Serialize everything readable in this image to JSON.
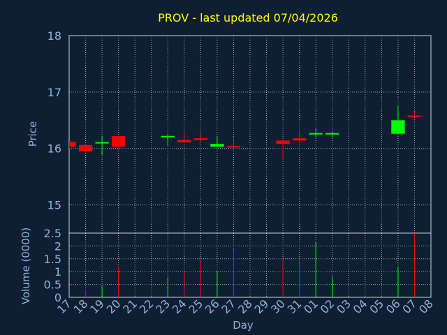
{
  "title": "PROV - last updated 07/04/2026",
  "chart_data": {
    "type": "candlestick",
    "x_label": "Day",
    "days": [
      "17",
      "18",
      "19",
      "20",
      "21",
      "22",
      "23",
      "24",
      "25",
      "26",
      "27",
      "28",
      "29",
      "30",
      "31",
      "01",
      "02",
      "03",
      "04",
      "05",
      "06",
      "07",
      "08"
    ],
    "colors": {
      "up": "#00ff00",
      "down": "#ff0000",
      "background": "#0f1f33",
      "text": "#8fb4d8",
      "title": "#ffff00"
    },
    "price": {
      "ylabel": "Price",
      "ylim": [
        14.5,
        18.0
      ],
      "ticks": [
        15,
        16,
        17,
        18
      ],
      "candles": [
        {
          "day": "17",
          "open": 16.12,
          "high": 16.12,
          "low": 16.0,
          "close": 16.03
        },
        {
          "day": "18",
          "open": 16.06,
          "high": 16.06,
          "low": 15.93,
          "close": 15.95
        },
        {
          "day": "19",
          "open": 16.09,
          "high": 16.22,
          "low": 15.89,
          "close": 16.1
        },
        {
          "day": "20",
          "open": 16.22,
          "high": 16.22,
          "low": 16.02,
          "close": 16.03
        },
        {
          "day": "23",
          "open": 16.2,
          "high": 16.25,
          "low": 16.05,
          "close": 16.21
        },
        {
          "day": "24",
          "open": 16.15,
          "high": 16.3,
          "low": 16.1,
          "close": 16.11
        },
        {
          "day": "25",
          "open": 16.18,
          "high": 16.25,
          "low": 16.15,
          "close": 16.15
        },
        {
          "day": "26",
          "open": 16.03,
          "high": 16.2,
          "low": 16.02,
          "close": 16.08
        },
        {
          "day": "27",
          "open": 16.03,
          "high": 16.2,
          "low": 15.97,
          "close": 16.01
        },
        {
          "day": "30",
          "open": 16.14,
          "high": 16.14,
          "low": 15.8,
          "close": 16.08
        },
        {
          "day": "31",
          "open": 16.18,
          "high": 16.3,
          "low": 16.13,
          "close": 16.14
        },
        {
          "day": "01",
          "open": 16.25,
          "high": 16.35,
          "low": 16.2,
          "close": 16.26
        },
        {
          "day": "02",
          "open": 16.25,
          "high": 16.3,
          "low": 16.2,
          "close": 16.26
        },
        {
          "day": "06",
          "open": 16.26,
          "high": 16.75,
          "low": 16.26,
          "close": 16.5
        },
        {
          "day": "07",
          "open": 16.57,
          "high": 16.65,
          "low": 16.55,
          "close": 16.55
        }
      ]
    },
    "volume": {
      "ylabel": "Volume (0000)",
      "ylim": [
        0,
        2.5
      ],
      "tick_labels": [
        "0",
        "0.5",
        "1",
        "1.5",
        "2",
        "2.5"
      ],
      "bars": [
        {
          "day": "18",
          "value": 0.25,
          "dir": "down"
        },
        {
          "day": "19",
          "value": 0.45,
          "dir": "up"
        },
        {
          "day": "20",
          "value": 1.2,
          "dir": "down"
        },
        {
          "day": "23",
          "value": 0.75,
          "dir": "up"
        },
        {
          "day": "24",
          "value": 1.0,
          "dir": "down"
        },
        {
          "day": "25",
          "value": 1.45,
          "dir": "down"
        },
        {
          "day": "26",
          "value": 1.0,
          "dir": "up"
        },
        {
          "day": "27",
          "value": 1.9,
          "dir": "down"
        },
        {
          "day": "30",
          "value": 1.45,
          "dir": "down"
        },
        {
          "day": "31",
          "value": 1.5,
          "dir": "down"
        },
        {
          "day": "01",
          "value": 2.15,
          "dir": "up"
        },
        {
          "day": "02",
          "value": 0.8,
          "dir": "up"
        },
        {
          "day": "06",
          "value": 1.2,
          "dir": "up"
        },
        {
          "day": "07",
          "value": 2.5,
          "dir": "down"
        }
      ]
    }
  }
}
